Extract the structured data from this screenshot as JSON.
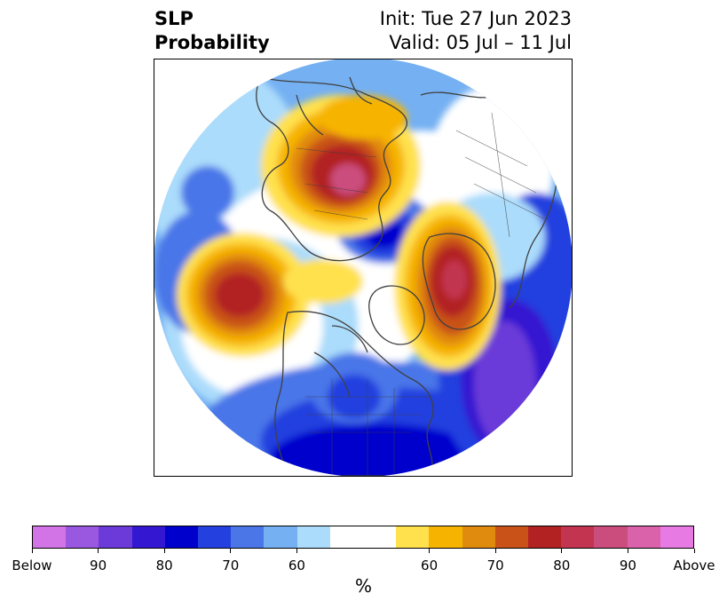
{
  "title": {
    "left_line1": "SLP",
    "left_line2": "Probability",
    "right_line1": "Init: Tue 27 Jun 2023",
    "right_line2": "Valid: 05 Jul – 11 Jul"
  },
  "colorbar": {
    "unit_label": "%",
    "colors": [
      "#d374e6",
      "#9a57e0",
      "#6b3ad8",
      "#3418d1",
      "#0000cd",
      "#2441df",
      "#4a76e8",
      "#74b0f2",
      "#abdcfb",
      "#ffffff",
      "#ffe14d",
      "#f6b400",
      "#e18b0e",
      "#c95218",
      "#b22222",
      "#c23450",
      "#cb4d7d",
      "#d962aa",
      "#e87ae3"
    ],
    "tick_labels": [
      "Below",
      "90",
      "80",
      "70",
      "60",
      "60",
      "70",
      "80",
      "90",
      "Above"
    ]
  },
  "map": {
    "projection": "north-polar-stereographic",
    "description_colors": {
      "below_strong": "#0000cd",
      "below_light": "#abdcfb",
      "above_light": "#ffe14d",
      "above_strong": "#b22222",
      "coastline": "#404040"
    }
  }
}
